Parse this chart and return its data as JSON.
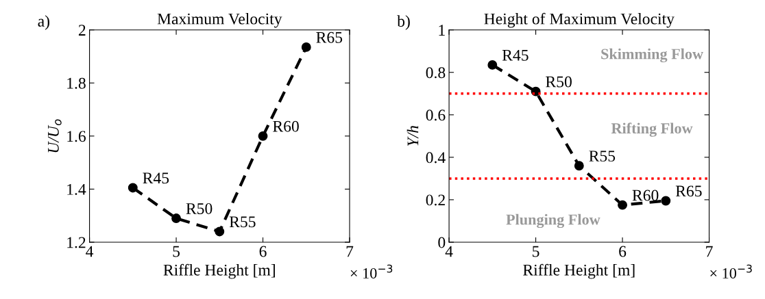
{
  "chart_data": [
    {
      "type": "line",
      "title": "Maximum Velocity",
      "xlabel": "Riffle Height [m]",
      "ylabel": "U/U$_{o}$",
      "x": [
        4.5,
        5,
        5.5,
        6,
        6.5
      ],
      "series": [
        {
          "color": "#000000",
          "values": [
            1.405,
            1.29,
            1.24,
            1.6,
            1.935
          ]
        }
      ],
      "marker": "circle",
      "line_style": "dashed",
      "grid": false,
      "legend": false,
      "xlim": [
        4,
        7
      ],
      "xticks": [
        4,
        5,
        6,
        7
      ],
      "ylim": [
        1.2,
        2
      ],
      "yticks": [
        1.2,
        1.4,
        1.6,
        1.8,
        2
      ],
      "annotations": [
        "a)",
        "× 10$^{−3}$",
        {
          "text": "R45",
          "x": 4.5,
          "y": 1.405
        },
        {
          "text": "R50",
          "x": 5,
          "y": 1.29
        },
        {
          "text": "R55",
          "x": 5.5,
          "y": 1.24
        },
        {
          "text": "R60",
          "x": 6,
          "y": 1.6
        },
        {
          "text": "R65",
          "x": 6.5,
          "y": 1.935
        }
      ]
    },
    {
      "type": "line",
      "title": "Height of Maximum Velocity",
      "xlabel": "Riffle Height [m]",
      "ylabel": "Y/h",
      "x": [
        4.5,
        5,
        5.5,
        6,
        6.5
      ],
      "series": [
        {
          "color": "#000000",
          "values": [
            0.835,
            0.71,
            0.36,
            0.175,
            0.195
          ]
        }
      ],
      "marker": "circle",
      "line_style": "dashed",
      "grid": false,
      "legend": false,
      "xlim": [
        4,
        7
      ],
      "xticks": [
        4,
        5,
        6,
        7
      ],
      "ylim": [
        0,
        1
      ],
      "yticks": [
        0,
        0.2,
        0.4,
        0.6,
        0.8,
        1
      ],
      "ref_lines": [
        {
          "axis": "y",
          "value": 0.7,
          "color": "#ff0000",
          "line_style": "dotted"
        },
        {
          "axis": "y",
          "value": 0.3,
          "color": "#ff0000",
          "line_style": "dotted"
        }
      ],
      "annotations": [
        "b)",
        "× 10$^{−3}$",
        "Skimming Flow",
        "Rifting Flow",
        "Plunging Flow",
        {
          "text": "R45",
          "x": 4.5,
          "y": 0.835
        },
        {
          "text": "R50",
          "x": 5,
          "y": 0.71
        },
        {
          "text": "R55",
          "x": 5.5,
          "y": 0.36
        },
        {
          "text": "R60",
          "x": 6,
          "y": 0.175
        },
        {
          "text": "R65",
          "x": 6.5,
          "y": 0.195
        }
      ]
    }
  ]
}
